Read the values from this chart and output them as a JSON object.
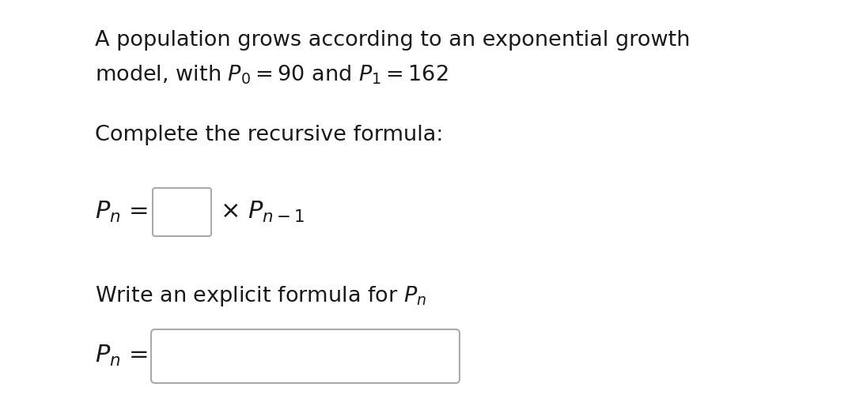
{
  "background_color": "#ffffff",
  "text_color": "#1a1a1a",
  "font_size_main": 19.5,
  "font_size_formula": 22,
  "line1": "A population grows according to an exponential growth",
  "line2": "model, with $P_0 = 90$ and $P_1 = 162$",
  "line3": "Complete the recursive formula:",
  "line5": "Write an explicit formula for $P_n$",
  "box1_color": "#aaaaaa",
  "box2_color": "#aaaaaa"
}
